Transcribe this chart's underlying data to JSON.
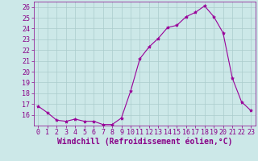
{
  "x": [
    0,
    1,
    2,
    3,
    4,
    5,
    6,
    7,
    8,
    9,
    10,
    11,
    12,
    13,
    14,
    15,
    16,
    17,
    18,
    19,
    20,
    21,
    22,
    23
  ],
  "y": [
    16.8,
    16.2,
    15.5,
    15.4,
    15.6,
    15.4,
    15.4,
    15.1,
    15.1,
    15.7,
    18.2,
    21.2,
    22.3,
    23.1,
    24.1,
    24.3,
    25.1,
    25.5,
    26.1,
    25.1,
    23.6,
    19.4,
    17.2,
    16.4
  ],
  "line_color": "#990099",
  "marker": "*",
  "marker_size": 3,
  "bg_color": "#cce8e8",
  "grid_color": "#aacccc",
  "xlabel": "Windchill (Refroidissement éolien,°C)",
  "xlim": [
    -0.5,
    23.5
  ],
  "ylim": [
    15.0,
    26.5
  ],
  "yticks": [
    16,
    17,
    18,
    19,
    20,
    21,
    22,
    23,
    24,
    25,
    26
  ],
  "xticks": [
    0,
    1,
    2,
    3,
    4,
    5,
    6,
    7,
    8,
    9,
    10,
    11,
    12,
    13,
    14,
    15,
    16,
    17,
    18,
    19,
    20,
    21,
    22,
    23
  ],
  "xlabel_color": "#880088",
  "tick_color": "#880088",
  "axis_color": "#880088",
  "xlabel_fontsize": 7,
  "tick_fontsize": 6
}
